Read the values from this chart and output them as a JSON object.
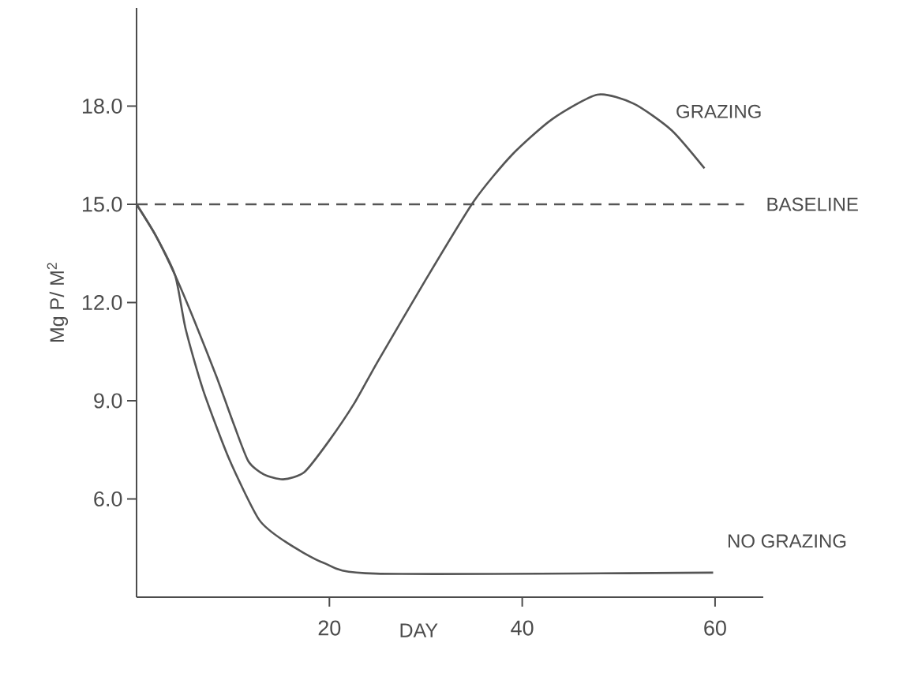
{
  "chart_data": {
    "type": "line",
    "xlabel": "DAY",
    "ylabel": "Mg P/ M$^{2}$",
    "xlim": [
      0,
      65
    ],
    "ylim": [
      3,
      21
    ],
    "xticks": [
      20,
      40,
      60
    ],
    "yticks": [
      {
        "value": 6,
        "label": "6.0"
      },
      {
        "value": 9,
        "label": "9.0"
      },
      {
        "value": 12,
        "label": "12.0"
      },
      {
        "value": 15,
        "label": "15.0"
      },
      {
        "value": 18,
        "label": "18.0"
      }
    ],
    "grid": false,
    "marker": "none",
    "line_style": "solid",
    "series": [
      {
        "name": "GRAZING",
        "color": "#555555",
        "x": [
          0,
          2.0,
          4.0,
          6.0,
          8.3,
          10.1,
          11.6,
          13.2,
          15.2,
          17.4,
          19.9,
          22.6,
          25.0,
          30.0,
          35.0,
          38.9,
          43.1,
          47.8,
          51.6,
          55.5,
          58.9
        ],
        "values": [
          15.0,
          14.04,
          12.83,
          11.44,
          9.73,
          8.27,
          7.15,
          6.75,
          6.6,
          6.82,
          7.75,
          8.93,
          10.19,
          12.7,
          15.1,
          16.5,
          17.6,
          18.35,
          18.07,
          17.26,
          16.1
        ]
      },
      {
        "name": "NO GRAZING",
        "color": "#555555",
        "x": [
          0,
          2.0,
          4.0,
          5.1,
          6.9,
          9.6,
          12.7,
          15.4,
          19.4,
          24.8,
          59.8
        ],
        "values": [
          15.0,
          14.04,
          12.83,
          11.18,
          9.33,
          7.22,
          5.37,
          4.7,
          4.05,
          3.72,
          3.75
        ]
      }
    ],
    "ref_lines": [
      {
        "axis": "y",
        "value": 15,
        "label": "BASELINE",
        "color": "#555555",
        "line_style": "dashed"
      }
    ]
  }
}
